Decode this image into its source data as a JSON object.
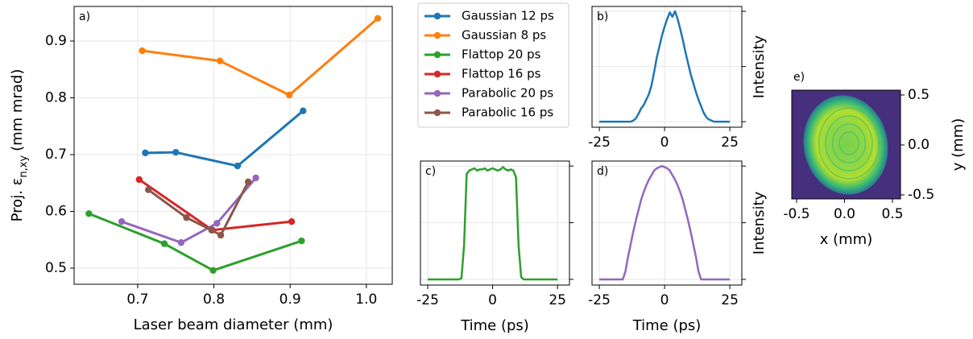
{
  "chart_data": [
    {
      "type": "line",
      "panel_label": "a)",
      "xlabel": "Laser beam diameter (mm)",
      "ylabel": {
        "main": "Proj. ε",
        "sub": "n,xy",
        "unit": "(mm mrad)"
      },
      "xlim": [
        0.6166,
        1.034
      ],
      "ylim": [
        0.4716,
        0.961
      ],
      "xticks": [
        0.7,
        0.8,
        0.9,
        {
          "value": 1.0,
          "label": "1.0"
        }
      ],
      "yticks": [
        0.5,
        0.6,
        0.7,
        0.8,
        0.9
      ],
      "grid": true,
      "legend": "outside right",
      "series": [
        {
          "name": "Gaussian 12 ps",
          "color": "#1f77b4",
          "x": [
            0.71,
            0.75,
            0.831,
            0.917
          ],
          "values": [
            0.703,
            0.704,
            0.68,
            0.777
          ]
        },
        {
          "name": "Gaussian 8 ps",
          "color": "#ff7f0e",
          "x": [
            0.706,
            0.808,
            0.899,
            1.015
          ],
          "values": [
            0.883,
            0.865,
            0.805,
            0.94
          ]
        },
        {
          "name": "Flattop 20 ps",
          "color": "#2ca02c",
          "x": [
            0.636,
            0.735,
            0.799,
            0.915
          ],
          "values": [
            0.596,
            0.543,
            0.496,
            0.548
          ]
        },
        {
          "name": "Flattop 16 ps",
          "color": "#d62728",
          "x": [
            0.702,
            0.798,
            0.902
          ],
          "values": [
            0.656,
            0.567,
            0.582
          ]
        },
        {
          "name": "Parabolic 20 ps",
          "color": "#9467bd",
          "x": [
            0.679,
            0.757,
            0.804,
            0.855
          ],
          "values": [
            0.582,
            0.545,
            0.579,
            0.659
          ]
        },
        {
          "name": "Parabolic 16 ps",
          "color": "#8c564b",
          "x": [
            0.714,
            0.764,
            0.797,
            0.809,
            0.845
          ],
          "values": [
            0.638,
            0.589,
            0.567,
            0.558,
            0.652
          ]
        }
      ]
    },
    {
      "type": "line",
      "panel_label": "b)",
      "ylabel": "Intensity",
      "color": "#1f77b4",
      "xlim": [
        -27.8,
        29.6
      ],
      "ylim": [
        -0.05,
        1.044
      ],
      "xticks": [
        -25,
        0,
        25
      ],
      "ytick_marks": [
        0,
        0.5,
        1
      ],
      "grid": true,
      "x": [
        -25,
        -24,
        -23,
        -22,
        -21,
        -20,
        -19,
        -18,
        -17,
        -16,
        -15,
        -14,
        -13,
        -12,
        -11,
        -10,
        -9,
        -8,
        -7,
        -6,
        -5,
        -4,
        -3,
        -2,
        -1,
        0,
        1,
        2,
        3,
        4,
        5,
        6,
        7,
        8,
        9,
        10,
        11,
        12,
        13,
        14,
        15,
        16,
        17,
        18,
        19,
        20,
        21,
        22,
        23,
        24,
        25
      ],
      "values": [
        0,
        0,
        0,
        0,
        0,
        0,
        0,
        0,
        0,
        0,
        0,
        0,
        0,
        0.01,
        0.03,
        0.07,
        0.12,
        0.15,
        0.2,
        0.25,
        0.33,
        0.45,
        0.58,
        0.68,
        0.78,
        0.86,
        0.93,
        0.99,
        0.95,
        1.0,
        0.93,
        0.84,
        0.74,
        0.63,
        0.53,
        0.43,
        0.35,
        0.27,
        0.2,
        0.14,
        0.08,
        0.04,
        0.02,
        0.01,
        0,
        0,
        0,
        0,
        0,
        0,
        0
      ]
    },
    {
      "type": "line",
      "panel_label": "c)",
      "xlabel": "Time (ps)",
      "color": "#2ca02c",
      "xlim": [
        -27.8,
        29.6
      ],
      "ylim": [
        -0.05,
        1.044
      ],
      "xticks": [
        -25,
        0,
        25
      ],
      "ytick_marks": [
        0,
        0.5,
        1
      ],
      "grid": true,
      "x": [
        -25,
        -24,
        -23,
        -22,
        -21,
        -20,
        -19,
        -18,
        -17,
        -16,
        -15,
        -14,
        -13,
        -12,
        -11,
        -10,
        -9,
        -8,
        -7,
        -6,
        -5,
        -4,
        -3,
        -2,
        -1,
        0,
        1,
        2,
        3,
        4,
        5,
        6,
        7,
        8,
        9,
        10,
        11,
        12,
        13,
        14,
        15,
        16,
        17,
        18,
        19,
        20,
        21,
        22,
        23,
        24,
        25
      ],
      "values": [
        0,
        0,
        0,
        0,
        0,
        0,
        0,
        0,
        0,
        0,
        0,
        0,
        0,
        0.01,
        0.3,
        0.93,
        0.96,
        0.97,
        0.98,
        0.96,
        0.97,
        0.97,
        0.98,
        0.96,
        0.97,
        0.98,
        0.97,
        0.96,
        0.97,
        0.99,
        0.97,
        0.96,
        0.97,
        0.96,
        0.9,
        0.3,
        0.02,
        0,
        0,
        0,
        0,
        0,
        0,
        0,
        0,
        0,
        0,
        0,
        0,
        0,
        0
      ]
    },
    {
      "type": "line",
      "panel_label": "d)",
      "xlabel": "Time (ps)",
      "ylabel": "Intensity",
      "color": "#9467bd",
      "xlim": [
        -27.8,
        29.6
      ],
      "ylim": [
        -0.05,
        1.044
      ],
      "xticks": [
        -25,
        0,
        25
      ],
      "ytick_marks": [
        0,
        0.5,
        1
      ],
      "grid": true,
      "x": [
        -25,
        -24,
        -23,
        -22,
        -21,
        -20,
        -19,
        -18,
        -17,
        -16,
        -15,
        -14,
        -13,
        -12,
        -11,
        -10,
        -9,
        -8,
        -7,
        -6,
        -5,
        -4,
        -3,
        -2,
        -1,
        0,
        1,
        2,
        3,
        4,
        5,
        6,
        7,
        8,
        9,
        10,
        11,
        12,
        13,
        14,
        15,
        16,
        17,
        18,
        19,
        20,
        21,
        22,
        23,
        24,
        25
      ],
      "values": [
        0,
        0,
        0,
        0,
        0,
        0,
        0,
        0,
        0,
        0,
        0.07,
        0.2,
        0.31,
        0.42,
        0.52,
        0.61,
        0.7,
        0.77,
        0.83,
        0.88,
        0.92,
        0.96,
        0.98,
        0.99,
        1.0,
        0.99,
        0.98,
        0.96,
        0.92,
        0.88,
        0.83,
        0.77,
        0.7,
        0.61,
        0.52,
        0.42,
        0.31,
        0.2,
        0.07,
        0,
        0,
        0,
        0,
        0,
        0,
        0,
        0,
        0,
        0,
        0,
        0
      ]
    },
    {
      "type": "image",
      "panel_label": "e)",
      "xlabel": "x (mm)",
      "ylabel": "y (mm)",
      "xlim": [
        -0.55,
        0.584
      ],
      "ylim": [
        -0.54,
        0.548
      ],
      "xticks": [
        -0.5,
        {
          "value": 0.0,
          "label": "0.0"
        },
        0.5
      ],
      "yticks": [
        -0.5,
        {
          "value": 0.0,
          "label": "0.0"
        },
        0.5
      ]
    }
  ]
}
